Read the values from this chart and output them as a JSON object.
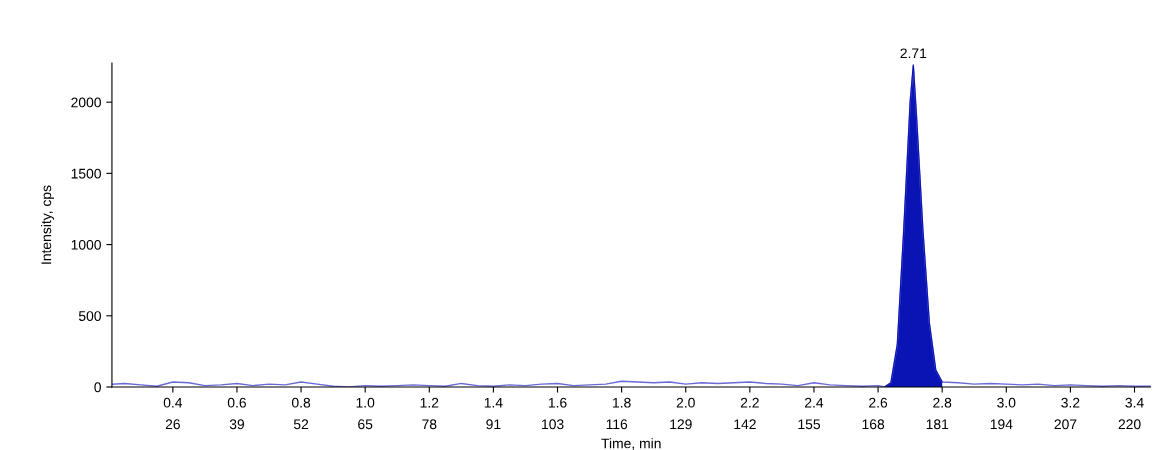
{
  "chart_data": {
    "type": "line",
    "xlabel": "Time, min",
    "ylabel": "Intensity, cps",
    "xlim": [
      0.21,
      3.45
    ],
    "ylim": [
      0,
      2275
    ],
    "xticks": [
      0.4,
      0.6,
      0.8,
      {
        "value": 1,
        "label": "1.0"
      },
      1.2,
      1.4,
      1.6,
      1.8,
      {
        "value": 2,
        "label": "2.0"
      },
      2.2,
      2.4,
      2.6,
      2.8,
      {
        "value": 3,
        "label": "3.0"
      },
      3.2,
      3.4
    ],
    "x2lim": [
      13.65,
      224.25
    ],
    "x2ticks": [
      26,
      39,
      52,
      65,
      78,
      91,
      103,
      116,
      129,
      142,
      155,
      168,
      181,
      194,
      207,
      220
    ],
    "yticks": [
      0,
      500,
      1000,
      1500,
      2000
    ],
    "annotations": [
      {
        "text": "2.71",
        "x": 2.71,
        "y": 2260
      }
    ],
    "series": [
      {
        "color": "#6a6ad6",
        "x": [
          0.21,
          0.25,
          0.3,
          0.35,
          0.4,
          0.45,
          0.5,
          0.55,
          0.6,
          0.65,
          0.7,
          0.75,
          0.8,
          0.85,
          0.9,
          0.95,
          1.0,
          1.05,
          1.1,
          1.15,
          1.2,
          1.25,
          1.3,
          1.35,
          1.4,
          1.45,
          1.5,
          1.55,
          1.6,
          1.65,
          1.7,
          1.75,
          1.8,
          1.85,
          1.9,
          1.95,
          2.0,
          2.05,
          2.1,
          2.15,
          2.2,
          2.25,
          2.3,
          2.35,
          2.4,
          2.45,
          2.5,
          2.55,
          2.6,
          2.62,
          2.64,
          2.66,
          2.68,
          2.7,
          2.71,
          2.72,
          2.74,
          2.76,
          2.78,
          2.8,
          2.85,
          2.9,
          2.95,
          3.0,
          3.05,
          3.1,
          3.15,
          3.2,
          3.25,
          3.3,
          3.35,
          3.4,
          3.45
        ],
        "values": [
          20,
          25,
          15,
          5,
          35,
          30,
          10,
          15,
          25,
          10,
          20,
          15,
          35,
          20,
          5,
          0,
          10,
          5,
          10,
          15,
          10,
          5,
          25,
          10,
          5,
          15,
          10,
          20,
          25,
          10,
          15,
          20,
          40,
          35,
          30,
          35,
          20,
          30,
          25,
          30,
          35,
          25,
          20,
          10,
          30,
          15,
          10,
          5,
          10,
          0,
          30,
          300,
          1100,
          2000,
          2260,
          1900,
          1100,
          450,
          120,
          35,
          30,
          20,
          25,
          20,
          15,
          20,
          10,
          15,
          10,
          5,
          10,
          5,
          5
        ]
      },
      {
        "type": "area",
        "color": "#0a14b4",
        "x": [
          2.62,
          2.64,
          2.66,
          2.68,
          2.7,
          2.71,
          2.72,
          2.74,
          2.76,
          2.78,
          2.8
        ],
        "values": [
          0,
          30,
          300,
          1100,
          2000,
          2260,
          1900,
          1100,
          450,
          120,
          35
        ]
      }
    ]
  }
}
